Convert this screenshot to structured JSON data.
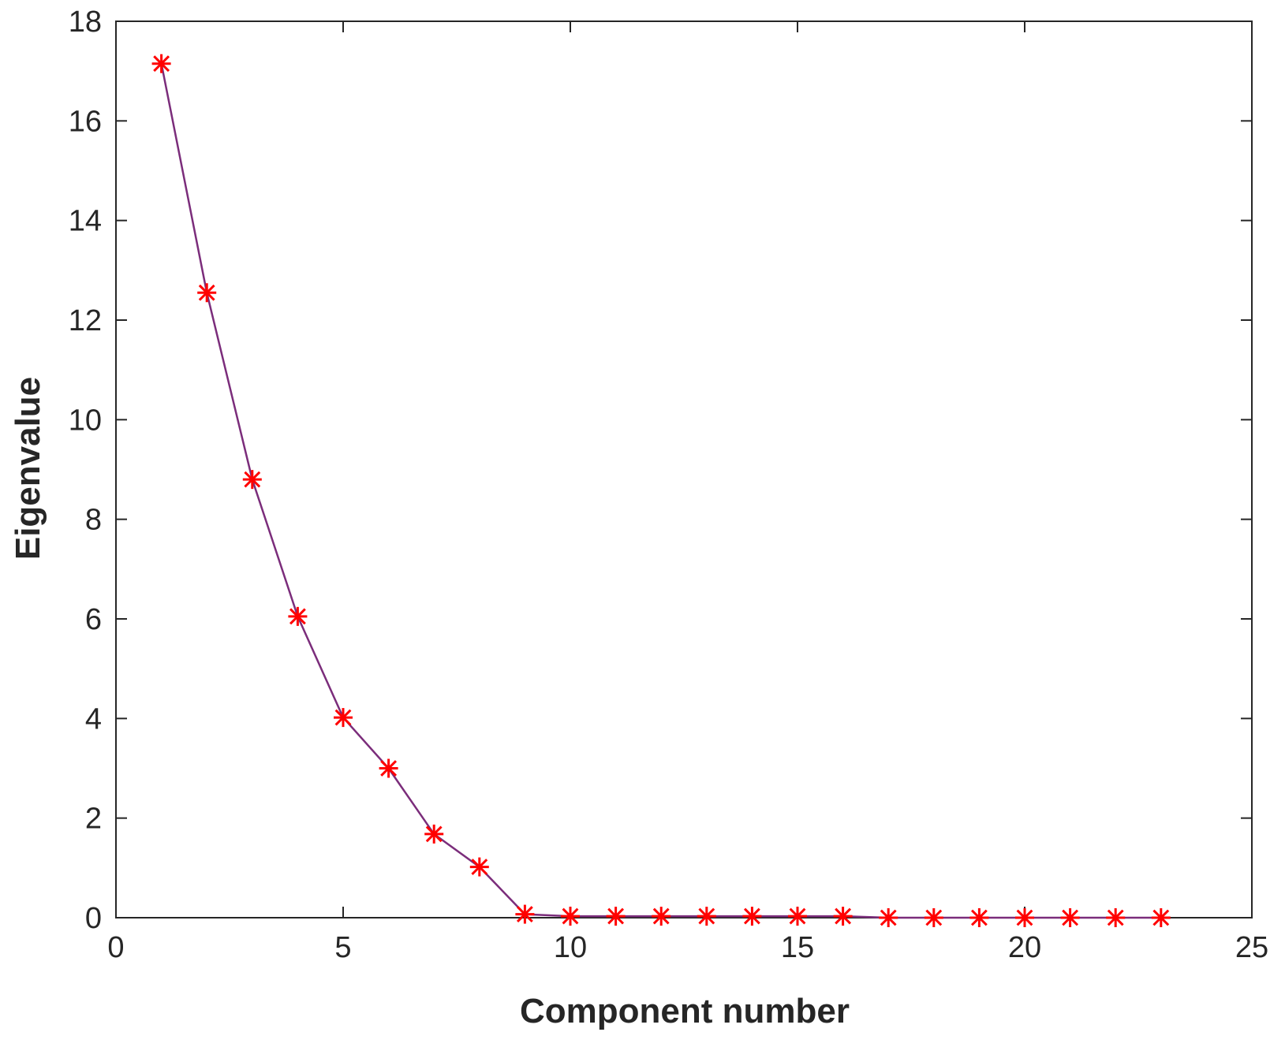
{
  "colors": {
    "axis": "#262626",
    "line": "#7b2d7b",
    "marker": "#ff0000",
    "background": "#ffffff"
  },
  "chart_data": {
    "type": "line",
    "title": "",
    "xlabel": "Component number",
    "ylabel": "Eigenvalue",
    "xlim": [
      0,
      25
    ],
    "ylim": [
      0,
      18
    ],
    "xticks": [
      0,
      5,
      10,
      15,
      20,
      25
    ],
    "yticks": [
      0,
      2,
      4,
      6,
      8,
      10,
      12,
      14,
      16,
      18
    ],
    "grid": false,
    "marker": "asterisk",
    "series": [
      {
        "x": [
          1,
          2,
          3,
          4,
          5,
          6,
          7,
          8,
          9,
          10,
          11,
          12,
          13,
          14,
          15,
          16,
          17,
          18,
          19,
          20,
          21,
          22,
          23
        ],
        "values": [
          17.15,
          12.55,
          8.8,
          6.05,
          4.02,
          3.0,
          1.68,
          1.02,
          0.07,
          0.03,
          0.03,
          0.03,
          0.03,
          0.03,
          0.03,
          0.03,
          0.0,
          0.0,
          0.0,
          0.0,
          0.0,
          0.0,
          0.0
        ]
      }
    ]
  }
}
